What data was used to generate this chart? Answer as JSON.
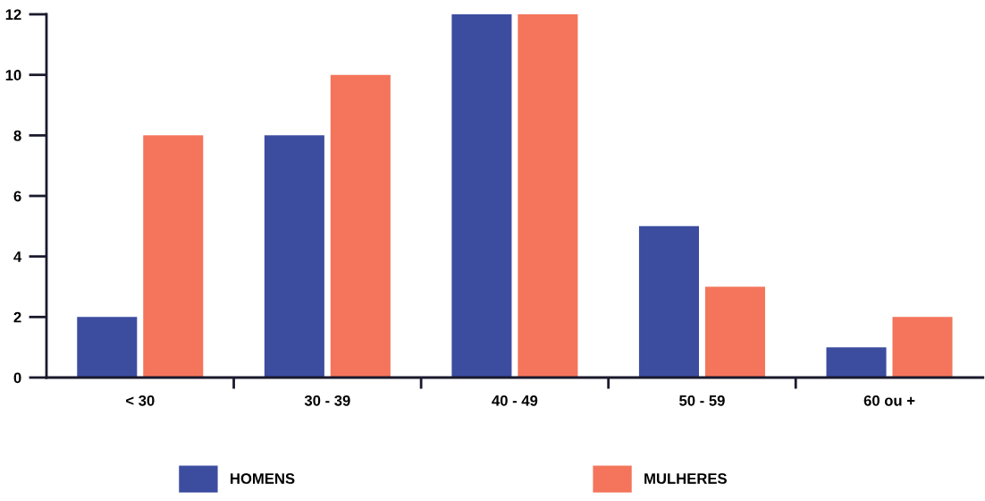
{
  "chart_data": {
    "type": "bar",
    "categories": [
      "< 30",
      "30 - 39",
      "40 - 49",
      "50 - 59",
      "60 ou +"
    ],
    "series": [
      {
        "name": "HOMENS",
        "color": "#3c4da0",
        "values": [
          2,
          8,
          12,
          5,
          1
        ]
      },
      {
        "name": "MULHERES",
        "color": "#f4755b",
        "values": [
          8,
          10,
          12,
          3,
          2
        ]
      }
    ],
    "ylim": [
      0,
      12
    ],
    "yticks": [
      0,
      2,
      4,
      6,
      8,
      10,
      12
    ],
    "grid": false,
    "legend": "bottom"
  }
}
